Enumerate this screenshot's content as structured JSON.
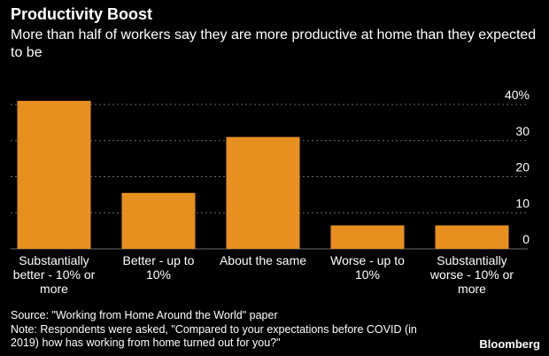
{
  "header": {
    "title": "Productivity Boost",
    "subtitle": "More than half of workers say they are more productive at home than they expected to be"
  },
  "chart_data": {
    "type": "bar",
    "categories": [
      [
        "Substantially",
        "better - 10% or",
        "more"
      ],
      [
        "Better - up to",
        "10%"
      ],
      [
        "About the same"
      ],
      [
        "Worse - up to",
        "10%"
      ],
      [
        "Substantially",
        "worse - 10% or",
        "more"
      ]
    ],
    "values": [
      41,
      15.5,
      31,
      6.5,
      6.5
    ],
    "ylim": [
      0,
      40
    ],
    "yticks": [
      0,
      10,
      20,
      30,
      40
    ],
    "ytick_labels": [
      "0",
      "10",
      "20",
      "30",
      "40%"
    ],
    "grid": true,
    "bar_color": "#e8901f"
  },
  "footer": {
    "source": "Source: \"Working from Home Around the World\" paper",
    "note_line1": "Note: Respondents were asked, \"Compared to your expectations before COVID (in",
    "note_line2": "2019) how has working from home turned out for you?\""
  },
  "brand": "Bloomberg",
  "colors": {
    "background": "#000000",
    "text": "#ffffff",
    "bar": "#e8901f",
    "grid": "#6a6a6a"
  }
}
